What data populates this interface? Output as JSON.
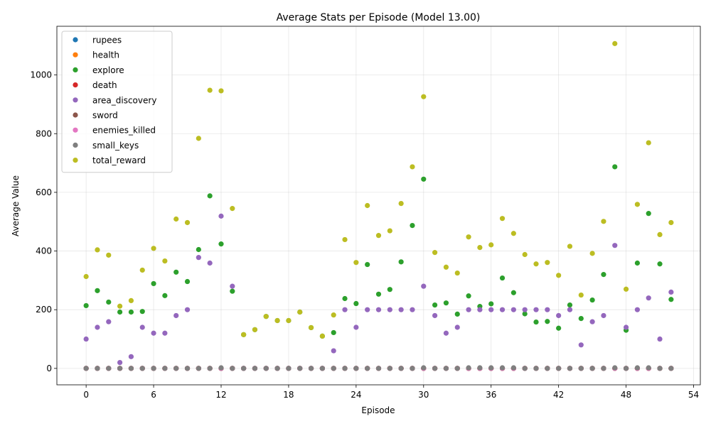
{
  "chart_data": {
    "type": "scatter",
    "title": "Average Stats per Episode (Model 13.00)",
    "xlabel": "Episode",
    "ylabel": "Average Value",
    "xlim": [
      -2.6,
      54.6
    ],
    "ylim": [
      -56,
      1166
    ],
    "xticks": [
      0,
      6,
      12,
      18,
      24,
      30,
      36,
      42,
      48,
      54
    ],
    "yticks": [
      0,
      200,
      400,
      600,
      800,
      1000
    ],
    "grid": true,
    "legend_position": "top-left",
    "x": [
      0,
      1,
      2,
      3,
      4,
      5,
      6,
      7,
      8,
      9,
      10,
      11,
      12,
      13,
      14,
      15,
      16,
      17,
      18,
      19,
      20,
      21,
      22,
      23,
      24,
      25,
      26,
      27,
      28,
      29,
      30,
      31,
      32,
      33,
      34,
      35,
      36,
      37,
      38,
      39,
      40,
      41,
      42,
      43,
      44,
      45,
      46,
      47,
      48,
      49,
      50,
      51,
      52
    ],
    "series": [
      {
        "name": "rupees",
        "color": "#1f77b4",
        "values": [
          0,
          0,
          0,
          0,
          0,
          0,
          0,
          0,
          0,
          0,
          0,
          0,
          0,
          0,
          0,
          0,
          0,
          0,
          0,
          0,
          0,
          0,
          0,
          0,
          0,
          0,
          0,
          0,
          0,
          0,
          0,
          0,
          0,
          0,
          0,
          0,
          0,
          0,
          0,
          0,
          0,
          0,
          0,
          0,
          0,
          0,
          0,
          0,
          0,
          0,
          0,
          0,
          0
        ]
      },
      {
        "name": "health",
        "color": "#ff7f0e",
        "values": [
          0,
          0,
          0,
          0,
          0,
          0,
          0,
          0,
          0,
          0,
          0,
          0,
          0,
          0,
          0,
          0,
          0,
          0,
          0,
          0,
          0,
          0,
          0,
          0,
          0,
          0,
          0,
          0,
          0,
          0,
          0,
          0,
          0,
          0,
          0,
          0,
          0,
          0,
          0,
          0,
          0,
          0,
          0,
          0,
          0,
          0,
          0,
          0,
          0,
          0,
          0,
          0,
          0
        ]
      },
      {
        "name": "explore",
        "color": "#2ca02c",
        "values": [
          214,
          265,
          226,
          192,
          192,
          194,
          289,
          248,
          328,
          296,
          405,
          588,
          424,
          263,
          115,
          132,
          177,
          163,
          163,
          192,
          139,
          110,
          122,
          238,
          221,
          354,
          253,
          269,
          363,
          487,
          645,
          216,
          223,
          185,
          247,
          211,
          220,
          308,
          258,
          186,
          158,
          160,
          137,
          216,
          170,
          233,
          320,
          687,
          130,
          359,
          528,
          356,
          235
        ]
      },
      {
        "name": "death",
        "color": "#d62728",
        "values": [
          0,
          0,
          0,
          0,
          0,
          0,
          0,
          0,
          0,
          0,
          0,
          0,
          0,
          0,
          0,
          0,
          0,
          0,
          0,
          0,
          0,
          0,
          0,
          0,
          0,
          0,
          0,
          0,
          0,
          0,
          0,
          0,
          0,
          0,
          0,
          0,
          0,
          0,
          0,
          0,
          0,
          0,
          0,
          0,
          0,
          0,
          0,
          0,
          0,
          0,
          0,
          0,
          0
        ]
      },
      {
        "name": "area_discovery",
        "color": "#9467bd",
        "values": [
          100,
          140,
          159,
          20,
          40,
          140,
          120,
          120,
          180,
          200,
          378,
          359,
          519,
          280,
          0,
          0,
          0,
          0,
          0,
          0,
          0,
          0,
          60,
          200,
          140,
          200,
          200,
          200,
          200,
          200,
          280,
          180,
          120,
          140,
          200,
          200,
          200,
          200,
          200,
          200,
          200,
          200,
          180,
          200,
          80,
          159,
          180,
          419,
          140,
          200,
          240,
          100,
          260
        ]
      },
      {
        "name": "sword",
        "color": "#8c564b",
        "values": [
          0,
          0,
          0,
          0,
          0,
          0,
          0,
          0,
          0,
          0,
          0,
          0,
          0,
          0,
          0,
          0,
          0,
          0,
          0,
          0,
          0,
          0,
          0,
          0,
          0,
          0,
          0,
          0,
          0,
          0,
          0,
          0,
          0,
          0,
          0,
          0,
          0,
          0,
          0,
          0,
          0,
          0,
          0,
          0,
          0,
          0,
          0,
          0,
          0,
          0,
          0,
          0,
          0
        ]
      },
      {
        "name": "enemies_killed",
        "color": "#e377c2",
        "values": [
          0,
          0,
          0,
          0,
          0,
          0,
          0,
          0,
          0,
          0,
          0,
          0,
          0,
          0,
          0,
          0,
          0,
          0,
          0,
          0,
          0,
          0,
          0,
          0,
          0,
          0,
          0,
          0,
          0,
          0,
          0,
          0,
          0,
          0,
          0,
          0,
          0,
          0,
          0,
          0,
          0,
          0,
          0,
          0,
          0,
          0,
          0,
          0,
          0,
          0,
          0,
          0,
          0
        ]
      },
      {
        "name": "small_keys",
        "color": "#7f7f7f",
        "values": [
          0,
          0,
          0,
          0,
          0,
          0,
          0,
          0,
          0,
          0,
          0,
          0,
          2,
          0,
          0,
          0,
          0,
          0,
          0,
          0,
          0,
          0,
          0,
          0,
          0,
          0,
          0,
          0,
          0,
          0,
          2,
          0,
          0,
          0,
          2,
          2,
          2,
          2,
          2,
          0,
          0,
          0,
          0,
          0,
          0,
          0,
          0,
          2,
          0,
          2,
          2,
          0,
          0
        ]
      },
      {
        "name": "total_reward",
        "color": "#bcbd22",
        "values": [
          313,
          404,
          386,
          212,
          231,
          335,
          409,
          366,
          509,
          497,
          784,
          948,
          946,
          545,
          115,
          132,
          177,
          163,
          163,
          192,
          139,
          110,
          182,
          439,
          361,
          555,
          453,
          469,
          562,
          687,
          926,
          395,
          345,
          325,
          448,
          412,
          421,
          511,
          460,
          388,
          356,
          361,
          317,
          416,
          250,
          392,
          501,
          1107,
          270,
          559,
          769,
          456,
          497
        ]
      }
    ]
  }
}
